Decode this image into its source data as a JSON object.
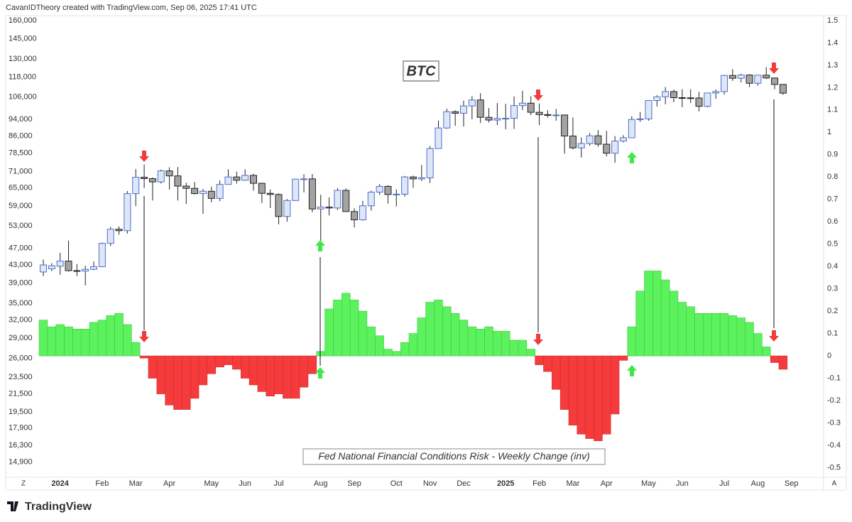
{
  "header": "CavanIDTheory created with TradingView.com, Sep 06, 2025 17:41 UTC",
  "brand": "TradingView",
  "axis_buttons": [
    "Z",
    "A"
  ],
  "chart_data": {
    "type": "candlestick",
    "categories": [
      null,
      null,
      "2024",
      null,
      null,
      null,
      null,
      "Feb",
      null,
      null,
      null,
      "Mar",
      null,
      null,
      null,
      "Apr",
      null,
      null,
      null,
      null,
      "May",
      null,
      null,
      null,
      "Jun",
      null,
      null,
      null,
      "Jul",
      null,
      null,
      null,
      null,
      "Aug",
      null,
      null,
      null,
      "Sep",
      null,
      null,
      null,
      null,
      "Oct",
      null,
      null,
      null,
      "Nov",
      null,
      null,
      null,
      "Dec",
      null,
      null,
      null,
      null,
      "2025",
      null,
      null,
      null,
      "Feb",
      null,
      null,
      null,
      "Mar",
      null,
      null,
      null,
      "Apr",
      null,
      null,
      null,
      null,
      "May",
      null,
      null,
      null,
      "Jun",
      null,
      null,
      null,
      null,
      "Jul",
      null,
      null,
      null,
      "Aug",
      null,
      null,
      null,
      "Sep"
    ],
    "ylog": true,
    "ylim": [
      13730,
      164300
    ],
    "yticks": [
      {
        "value": 14900,
        "label": "14,900"
      },
      {
        "value": 16300,
        "label": "16,300"
      },
      {
        "value": 17900,
        "label": "17,900"
      },
      {
        "value": 19500,
        "label": "19,500"
      },
      {
        "value": 21500,
        "label": "21,500"
      },
      {
        "value": 23500,
        "label": "23,500"
      },
      {
        "value": 26000,
        "label": "26,000"
      },
      {
        "value": 29000,
        "label": "29,000"
      },
      {
        "value": 32000,
        "label": "32,000"
      },
      {
        "value": 35000,
        "label": "35,000"
      },
      {
        "value": 39000,
        "label": "39,000"
      },
      {
        "value": 43000,
        "label": "43,000"
      },
      {
        "value": 47000,
        "label": "47,000"
      },
      {
        "value": 53000,
        "label": "53,000"
      },
      {
        "value": 59000,
        "label": "59,000"
      },
      {
        "value": 65000,
        "label": "65,000"
      },
      {
        "value": 71000,
        "label": "71,000"
      },
      {
        "value": 78500,
        "label": "78,500"
      },
      {
        "value": 86000,
        "label": "86,000"
      },
      {
        "value": 94000,
        "label": "94,000"
      },
      {
        "value": 106000,
        "label": "106,000"
      },
      {
        "value": 118000,
        "label": "118,000"
      },
      {
        "value": 130000,
        "label": "130,000"
      },
      {
        "value": 145000,
        "label": "145,000"
      },
      {
        "value": 160000,
        "label": "160,000"
      }
    ],
    "y2lim": [
      -0.543,
      1.522
    ],
    "y2ticks": [
      -0.5,
      -0.4,
      -0.3,
      -0.2,
      -0.1,
      0,
      0.1,
      0.2,
      0.3,
      0.4,
      0.5,
      0.6,
      0.7,
      0.8,
      0.9,
      1,
      1.1,
      1.2,
      1.3,
      1.4,
      1.5
    ],
    "grid": false,
    "series": [
      {
        "name": "BTC",
        "type": "candlestick",
        "up_color": "#dfe7f7",
        "up_border": "#4a6fcf",
        "down_color": "#a3a3a3",
        "down_border": "#222222",
        "open": [
          41400,
          42100,
          42700,
          43900,
          41700,
          41600,
          42000,
          42600,
          48300,
          52100,
          51700,
          63100,
          68900,
          68400,
          67200,
          71300,
          69400,
          65700,
          64900,
          63100,
          63900,
          61500,
          66300,
          69000,
          67800,
          69600,
          66700,
          63200,
          62800,
          55800,
          60800,
          68200,
          68300,
          58100,
          58700,
          58400,
          64200,
          57300,
          54800,
          59100,
          63600,
          65600,
          62800,
          62900,
          69000,
          68300,
          68700,
          80400,
          89800,
          98000,
          97200,
          101100,
          104400,
          95100,
          93700,
          94500,
          94600,
          101300,
          102600,
          97700,
          96500,
          96100,
          96300,
          86000,
          80700,
          82600,
          86100,
          82300,
          78400,
          83700,
          85200,
          94000,
          94300,
          104100,
          106200,
          109200,
          105700,
          105600,
          105500,
          100900,
          108400,
          109200,
          119100,
          117300,
          119400,
          114200,
          119300,
          117500,
          113500,
          null
        ],
        "high": [
          44300,
          43400,
          45900,
          49000,
          43200,
          42800,
          43800,
          48500,
          52800,
          52900,
          64000,
          72000,
          73800,
          68800,
          71800,
          72700,
          72800,
          66900,
          67200,
          64700,
          65500,
          67700,
          71900,
          71000,
          71900,
          70200,
          66900,
          64500,
          63200,
          61300,
          68300,
          70000,
          70100,
          62700,
          61800,
          65000,
          64900,
          58300,
          60700,
          64100,
          66400,
          66000,
          64500,
          69400,
          69500,
          73600,
          81500,
          93400,
          99600,
          98700,
          104000,
          106500,
          108300,
          99900,
          102700,
          102300,
          106400,
          109600,
          106500,
          102500,
          98800,
          99500,
          96500,
          95000,
          85300,
          87400,
          88800,
          88400,
          86000,
          86400,
          95700,
          97900,
          104300,
          107100,
          111900,
          110400,
          110600,
          110600,
          109000,
          108500,
          110500,
          119500,
          123200,
          120200,
          119800,
          119300,
          124500,
          117600,
          113600,
          null
        ],
        "low": [
          40500,
          41600,
          40800,
          41500,
          40500,
          38500,
          41800,
          42500,
          47600,
          50600,
          50900,
          59000,
          65000,
          60800,
          66600,
          64500,
          60800,
          59700,
          62800,
          56600,
          60200,
          60600,
          66300,
          66600,
          67600,
          64100,
          60000,
          58400,
          53500,
          54300,
          60700,
          63500,
          57100,
          49000,
          56100,
          57800,
          57200,
          52600,
          54600,
          57600,
          62700,
          59800,
          58900,
          62100,
          65100,
          67500,
          66800,
          80300,
          89400,
          90800,
          90500,
          94100,
          92200,
          92500,
          91200,
          89200,
          89300,
          98900,
          96200,
          91200,
          94900,
          93400,
          78200,
          80000,
          76600,
          81600,
          81200,
          77100,
          74500,
          83100,
          85100,
          92800,
          93400,
          100800,
          102000,
          103100,
          100400,
          102700,
          98200,
          100300,
          105100,
          107500,
          115700,
          114700,
          111900,
          112700,
          116800,
          110600,
          107300,
          null
        ],
        "close": [
          43000,
          42800,
          43900,
          41700,
          41600,
          42000,
          42600,
          48300,
          52100,
          51700,
          63100,
          68900,
          68400,
          67200,
          71300,
          69400,
          65700,
          64900,
          63100,
          63900,
          61500,
          66300,
          69000,
          67800,
          69600,
          66700,
          63200,
          62800,
          55800,
          60800,
          68200,
          68300,
          58100,
          58700,
          58400,
          64200,
          57300,
          54800,
          59100,
          63600,
          65600,
          62800,
          62900,
          69000,
          68300,
          68700,
          80400,
          89800,
          98000,
          97200,
          101100,
          104400,
          95100,
          93700,
          94500,
          94600,
          101300,
          102600,
          97700,
          96500,
          96100,
          96300,
          86000,
          80700,
          82600,
          86100,
          82300,
          78400,
          83700,
          85200,
          94000,
          94300,
          104100,
          106200,
          109200,
          105700,
          105600,
          105500,
          100900,
          108400,
          109200,
          119100,
          117300,
          119400,
          114200,
          119300,
          117500,
          113500,
          108300,
          null
        ]
      },
      {
        "name": "Fed National Financial Conditions Risk - Weekly Change (inv)",
        "type": "bar",
        "axis": "y2",
        "pos_color": "#5cf25e",
        "neg_color": "#f53b3b",
        "values": [
          0.16,
          0.13,
          0.14,
          0.13,
          0.12,
          0.12,
          0.15,
          0.16,
          0.18,
          0.19,
          0.14,
          0.06,
          -0.01,
          -0.1,
          -0.17,
          -0.22,
          -0.24,
          -0.24,
          -0.19,
          -0.13,
          -0.08,
          -0.05,
          -0.04,
          -0.06,
          -0.1,
          -0.13,
          -0.16,
          -0.18,
          -0.17,
          -0.19,
          -0.19,
          -0.14,
          -0.08,
          0.02,
          0.21,
          0.25,
          0.28,
          0.25,
          0.2,
          0.13,
          0.09,
          0.03,
          0.02,
          0.06,
          0.1,
          0.17,
          0.24,
          0.25,
          0.22,
          0.19,
          0.16,
          0.13,
          0.12,
          0.13,
          0.11,
          0.11,
          0.07,
          0.07,
          0.03,
          -0.04,
          -0.07,
          -0.15,
          -0.24,
          -0.31,
          -0.35,
          -0.37,
          -0.38,
          -0.35,
          -0.26,
          -0.02,
          0.13,
          0.29,
          0.38,
          0.38,
          0.34,
          0.29,
          0.24,
          0.22,
          0.19,
          0.19,
          0.19,
          0.19,
          0.18,
          0.17,
          0.15,
          0.1,
          0.04,
          -0.03,
          -0.06,
          null
        ]
      }
    ]
  }
}
